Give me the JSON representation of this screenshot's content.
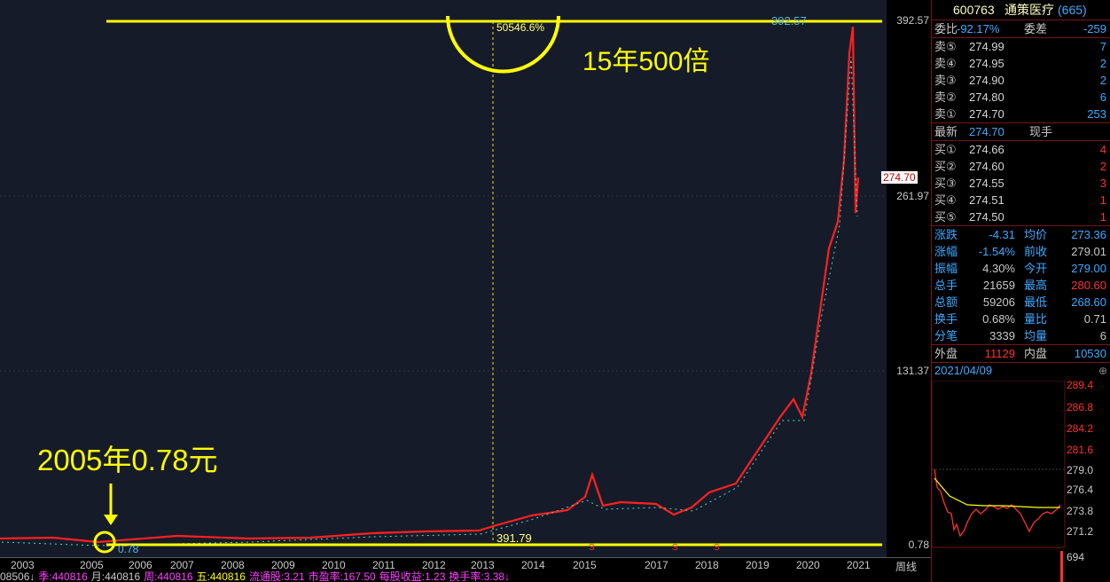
{
  "stock": {
    "code": "600763",
    "name": "通策医疗",
    "suffix": "(665)"
  },
  "price_axis": [
    "392.57",
    "261.97",
    "131.37",
    "0.78"
  ],
  "current_price_tag": "274.70",
  "chart": {
    "high_label": "392.57",
    "low_label": "0.78",
    "pct_label": "50546.6%",
    "crosshair_value": "391.79",
    "years": [
      "2003",
      "2005",
      "2006",
      "2007",
      "2008",
      "2009",
      "2010",
      "2011",
      "2012",
      "2013",
      "2014",
      "2015",
      "2017",
      "2018",
      "2019",
      "2020",
      "2021"
    ],
    "period": "周线",
    "marker_s": "S"
  },
  "annotations": {
    "top": "15年500倍",
    "left": "2005年0.78元"
  },
  "status_bar": [
    "08506↓",
    "季:440816",
    "月:440816",
    "周:440816",
    "五:440816",
    "流通股:3.21",
    "市盈率:167.50",
    "每股收益:1.23",
    "换手率:3.38↓"
  ],
  "order_book": {
    "ratio_label": "委比",
    "ratio_value": "-92.17%",
    "diff_label": "委差",
    "diff_value": "-259",
    "sells": [
      {
        "label": "卖⑤",
        "price": "274.99",
        "vol": "7"
      },
      {
        "label": "卖④",
        "price": "274.95",
        "vol": "2"
      },
      {
        "label": "卖③",
        "price": "274.90",
        "vol": "2"
      },
      {
        "label": "卖②",
        "price": "274.80",
        "vol": "6"
      },
      {
        "label": "卖①",
        "price": "274.70",
        "vol": "253"
      }
    ],
    "latest_label": "最新",
    "latest_price": "274.70",
    "latest_vol_label": "现手",
    "buys": [
      {
        "label": "买①",
        "price": "274.66",
        "vol": "4"
      },
      {
        "label": "买②",
        "price": "274.60",
        "vol": "2"
      },
      {
        "label": "买③",
        "price": "274.55",
        "vol": "3"
      },
      {
        "label": "买④",
        "price": "274.51",
        "vol": "1"
      },
      {
        "label": "买⑤",
        "price": "274.50",
        "vol": "1"
      }
    ]
  },
  "stats": [
    {
      "l1": "涨跌",
      "v1": "-4.31",
      "l2": "均价",
      "v2": "273.36"
    },
    {
      "l1": "涨幅",
      "v1": "-1.54%",
      "l2": "前收",
      "v2": "279.01"
    },
    {
      "l1": "振幅",
      "v1": "4.30%",
      "l2": "今开",
      "v2": "279.00"
    },
    {
      "l1": "总手",
      "v1": "21659",
      "l2": "最高",
      "v2": "280.60"
    },
    {
      "l1": "总额",
      "v1": "59206",
      "l2": "最低",
      "v2": "268.60"
    },
    {
      "l1": "换手",
      "v1": "0.68%",
      "l2": "量比",
      "v2": "0.71"
    },
    {
      "l1": "分笔",
      "v1": "3339",
      "l2": "均量",
      "v2": "6"
    }
  ],
  "outer": {
    "label": "外盘",
    "value": "11129",
    "label2": "内盘",
    "value2": "10530"
  },
  "date": "2021/04/09",
  "mini_prices": [
    "289.4",
    "286.8",
    "284.2",
    "281.6",
    "279.0",
    "276.4",
    "273.8",
    "271.2"
  ],
  "mini_volume": "694",
  "colors": {
    "yellow": "#ffff00",
    "red": "#ff3030",
    "cyan": "#00d0d0",
    "blue": "#3fa9ff",
    "green": "#00d000"
  }
}
